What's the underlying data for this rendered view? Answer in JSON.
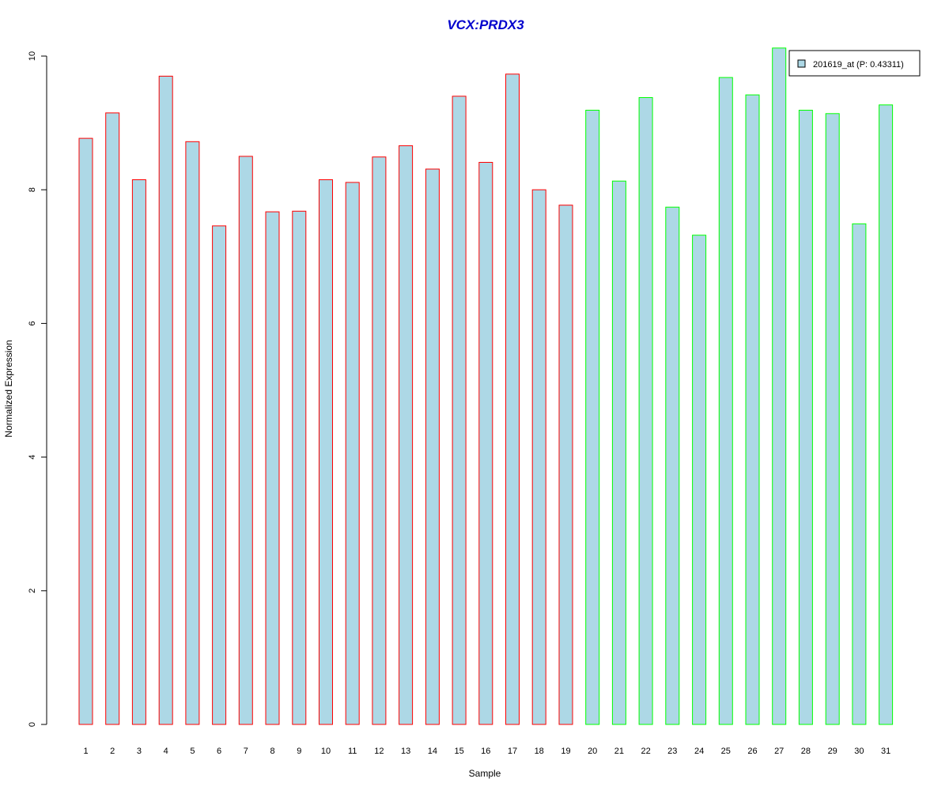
{
  "chart_data": {
    "type": "bar",
    "title": "VCX:PRDX3",
    "xlabel": "Sample",
    "ylabel": "Normalized Expression",
    "ylim": [
      0,
      10
    ],
    "yticks": [
      0,
      2,
      4,
      6,
      8,
      10
    ],
    "categories": [
      "1",
      "2",
      "3",
      "4",
      "5",
      "6",
      "7",
      "8",
      "9",
      "10",
      "11",
      "12",
      "13",
      "14",
      "15",
      "16",
      "17",
      "18",
      "19",
      "20",
      "21",
      "22",
      "23",
      "24",
      "25",
      "26",
      "27",
      "28",
      "29",
      "30",
      "31"
    ],
    "series": [
      {
        "name": "201619_at (P: 0.43311)",
        "values": [
          8.77,
          9.15,
          8.15,
          9.7,
          8.72,
          7.46,
          8.5,
          7.67,
          7.68,
          8.15,
          8.11,
          8.49,
          8.66,
          8.31,
          9.4,
          8.41,
          9.73,
          8.0,
          7.77,
          9.19,
          8.13,
          9.38,
          7.74,
          7.32,
          9.68,
          9.42,
          10.12,
          9.19,
          9.14,
          7.49,
          9.27
        ]
      }
    ],
    "bar_groups": [
      "red",
      "red",
      "red",
      "red",
      "red",
      "red",
      "red",
      "red",
      "red",
      "red",
      "red",
      "red",
      "red",
      "red",
      "red",
      "red",
      "red",
      "red",
      "red",
      "green",
      "green",
      "green",
      "green",
      "green",
      "green",
      "green",
      "green",
      "green",
      "green",
      "green",
      "green"
    ],
    "legend_position": "top-right",
    "grid": false
  },
  "colors": {
    "bar_fill": "#add8e6",
    "red": "#ff0000",
    "green": "#00ff00",
    "title": "#0000cd",
    "axis": "#000000"
  }
}
